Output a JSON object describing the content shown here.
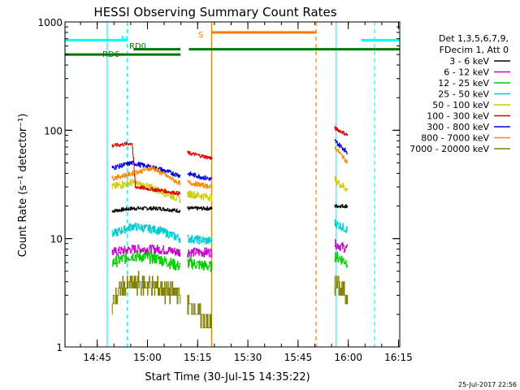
{
  "chart_data": {
    "type": "line",
    "title": "HESSI Observing Summary Count Rates",
    "xlabel": "Start Time (30-Jul-15 14:35:22)",
    "ylabel": "Count Rate (s⁻¹ detector⁻¹)",
    "xaxis_units": "minutes after 14:35:22",
    "xlim": [
      0,
      100
    ],
    "ylim": [
      1,
      1000
    ],
    "yscale": "log",
    "grid": false,
    "legend_position": "top-right",
    "xticks": [
      {
        "x": 9.63,
        "label": "14:45"
      },
      {
        "x": 24.63,
        "label": "15:00"
      },
      {
        "x": 39.63,
        "label": "15:15"
      },
      {
        "x": 54.63,
        "label": "15:30"
      },
      {
        "x": 69.63,
        "label": "15:45"
      },
      {
        "x": 84.63,
        "label": "16:00"
      },
      {
        "x": 99.63,
        "label": "16:15"
      }
    ],
    "yticks": [
      {
        "y": 1,
        "label": "1"
      },
      {
        "y": 10,
        "label": "10"
      },
      {
        "y": 100,
        "label": "100"
      },
      {
        "y": 1000,
        "label": "1000"
      }
    ],
    "legend": {
      "header": [
        "Det 1,3,5,6,7,9,",
        "FDecim 1, Att 0"
      ]
    },
    "series": [
      {
        "name": "3 - 6 keV",
        "color": "#000000",
        "segments": [
          {
            "x": [
              14.0,
              20.0,
              28.0,
              34.5
            ],
            "y": [
              18,
              19,
              19,
              18
            ]
          },
          {
            "x": [
              36.5,
              44.0
            ],
            "y": [
              19,
              19
            ]
          },
          {
            "x": [
              80.5,
              84.5
            ],
            "y": [
              20,
              20
            ]
          }
        ]
      },
      {
        "name": "6 - 12 keV",
        "color": "#cc00cc",
        "segments": [
          {
            "x": [
              14.0,
              20.0,
              28.0,
              34.5
            ],
            "y": [
              7.5,
              8,
              8,
              7.5
            ]
          },
          {
            "x": [
              36.5,
              44.0
            ],
            "y": [
              7.5,
              7.5
            ]
          },
          {
            "x": [
              80.5,
              84.5
            ],
            "y": [
              9,
              8
            ]
          }
        ]
      },
      {
        "name": "12 - 25 keV",
        "color": "#00cc00",
        "segments": [
          {
            "x": [
              14.0,
              20.0,
              28.0,
              34.5
            ],
            "y": [
              6,
              7,
              6.5,
              5.5
            ]
          },
          {
            "x": [
              36.5,
              44.0
            ],
            "y": [
              6,
              5.5
            ]
          },
          {
            "x": [
              80.5,
              84.5
            ],
            "y": [
              7,
              6
            ]
          }
        ]
      },
      {
        "name": "25 - 50 keV",
        "color": "#00cccc",
        "segments": [
          {
            "x": [
              14.0,
              20.0,
              28.0,
              34.5
            ],
            "y": [
              11,
              13,
              12,
              10
            ]
          },
          {
            "x": [
              36.5,
              44.0
            ],
            "y": [
              10,
              9.5
            ]
          },
          {
            "x": [
              80.5,
              84.5
            ],
            "y": [
              14,
              12
            ]
          }
        ]
      },
      {
        "name": "50 - 100 keV",
        "color": "#cccc00",
        "segments": [
          {
            "x": [
              14.0,
              20.0,
              28.0,
              34.5
            ],
            "y": [
              30,
              33,
              28,
              23
            ]
          },
          {
            "x": [
              36.5,
              44.0
            ],
            "y": [
              26,
              24
            ]
          },
          {
            "x": [
              80.5,
              84.5
            ],
            "y": [
              35,
              28
            ]
          }
        ]
      },
      {
        "name": "100 - 300 keV",
        "color": "#dd0000",
        "segments": [
          {
            "x": [
              14.0,
              20.0,
              21.0,
              28.0,
              34.5
            ],
            "y": [
              72,
              76,
              30,
              28,
              26
            ]
          },
          {
            "x": [
              36.5,
              44.0
            ],
            "y": [
              62,
              55
            ]
          },
          {
            "x": [
              80.5,
              84.5
            ],
            "y": [
              105,
              90
            ]
          }
        ]
      },
      {
        "name": "300 - 800 keV",
        "color": "#0000dd",
        "segments": [
          {
            "x": [
              14.0,
              20.0,
              28.0,
              34.5
            ],
            "y": [
              45,
              50,
              44,
              38
            ]
          },
          {
            "x": [
              36.5,
              44.0
            ],
            "y": [
              40,
              35
            ]
          },
          {
            "x": [
              80.5,
              84.5
            ],
            "y": [
              80,
              62
            ]
          }
        ]
      },
      {
        "name": "800 - 7000 keV",
        "color": "#ff8800",
        "segments": [
          {
            "x": [
              14.0,
              20.0,
              26.0,
              34.5
            ],
            "y": [
              36,
              40,
              45,
              32
            ]
          },
          {
            "x": [
              36.5,
              44.0
            ],
            "y": [
              33,
              30
            ]
          },
          {
            "x": [
              80.5,
              84.5
            ],
            "y": [
              70,
              50
            ]
          }
        ]
      },
      {
        "name": "7000 - 20000 keV",
        "color": "#808000",
        "segments": [
          {
            "x": [
              14.0,
              17.0,
              22.0,
              28.0,
              34.5
            ],
            "y": [
              2.5,
              3.5,
              4,
              3.5,
              3
            ]
          },
          {
            "x": [
              36.5,
              40.0,
              44.0
            ],
            "y": [
              2.5,
              2,
              1.5
            ]
          },
          {
            "x": [
              80.5,
              84.5
            ],
            "y": [
              4,
              3
            ]
          }
        ]
      }
    ],
    "annotations": {
      "state_bars": [
        {
          "label": "N",
          "color": "#00ffff",
          "segments": [
            [
              0,
              18.6
            ],
            [
              88.5,
              100
            ]
          ],
          "y": 680
        },
        {
          "label": "S",
          "color": "#ff7700",
          "segments": [
            [
              43.8,
              75.0
            ]
          ],
          "y": 800
        },
        {
          "label": "RD0",
          "color": "#007700",
          "segments": [
            [
              20.5,
              34.5
            ],
            [
              37.0,
              100
            ]
          ],
          "y": 560
        },
        {
          "label": "RD6",
          "color": "#007700",
          "segments": [
            [
              0,
              34.5
            ]
          ],
          "y": 500
        }
      ],
      "vlines": [
        {
          "x": 0.0,
          "color": "#00ffff",
          "style": "solid"
        },
        {
          "x": 12.6,
          "color": "#00ffff",
          "style": "solid"
        },
        {
          "x": 18.6,
          "color": "#00ffff",
          "style": "dashed"
        },
        {
          "x": 43.8,
          "color": "#ff7700",
          "style": "solid"
        },
        {
          "x": 75.0,
          "color": "#ff7700",
          "style": "dashed"
        },
        {
          "x": 81.0,
          "color": "#00ffff",
          "style": "solid"
        },
        {
          "x": 92.5,
          "color": "#00ffff",
          "style": "dashed"
        }
      ]
    },
    "timestamp": "25-Jul-2017 22:56"
  }
}
